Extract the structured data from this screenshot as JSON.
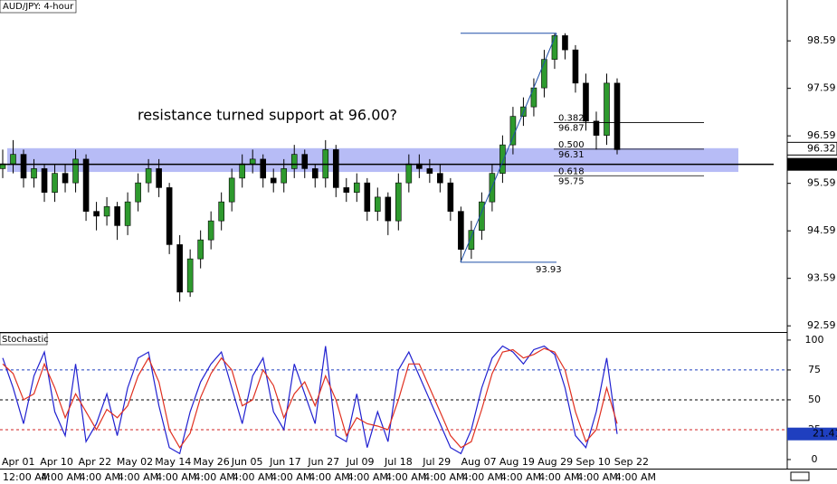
{
  "chart_data": [
    {
      "type": "candlestick",
      "title": "AUD/JPY: 4-hour",
      "annotation": "resistance turned support at 96.00?",
      "ylim": [
        92.46,
        99.45
      ],
      "yticks": [
        98.59,
        97.59,
        96.59,
        95.59,
        94.59,
        93.59,
        92.59
      ],
      "zone": [
        95.83,
        96.33
      ],
      "support_level": 95.99,
      "current_price": 96.32,
      "fib_low": 93.93,
      "fib_high": 98.75,
      "fib_levels": [
        {
          "ratio": "0.382",
          "price": 96.87
        },
        {
          "ratio": "0.500",
          "price": 96.31
        },
        {
          "ratio": "0.618",
          "price": 95.75
        }
      ],
      "up_color": "#2e9a2e",
      "down_color": "#000000",
      "zone_color": "#aab0f5",
      "fib_color": "#1f4fa8",
      "candles": [
        [
          95.9,
          96.3,
          95.7,
          96.0
        ],
        [
          96.0,
          96.5,
          95.8,
          96.2
        ],
        [
          96.2,
          96.3,
          95.5,
          95.7
        ],
        [
          95.7,
          96.1,
          95.5,
          95.9
        ],
        [
          95.9,
          96.0,
          95.2,
          95.4
        ],
        [
          95.4,
          96.0,
          95.2,
          95.8
        ],
        [
          95.8,
          96.0,
          95.4,
          95.6
        ],
        [
          95.6,
          96.3,
          95.4,
          96.1
        ],
        [
          96.1,
          96.2,
          94.8,
          95.0
        ],
        [
          95.0,
          95.2,
          94.6,
          94.9
        ],
        [
          94.9,
          95.3,
          94.7,
          95.1
        ],
        [
          95.1,
          95.2,
          94.4,
          94.7
        ],
        [
          94.7,
          95.4,
          94.5,
          95.2
        ],
        [
          95.2,
          95.8,
          95.0,
          95.6
        ],
        [
          95.6,
          96.1,
          95.4,
          95.9
        ],
        [
          95.9,
          96.1,
          95.3,
          95.5
        ],
        [
          95.5,
          95.6,
          94.1,
          94.3
        ],
        [
          94.3,
          94.5,
          93.1,
          93.3
        ],
        [
          93.3,
          94.2,
          93.2,
          94.0
        ],
        [
          94.0,
          94.6,
          93.8,
          94.4
        ],
        [
          94.4,
          95.0,
          94.2,
          94.8
        ],
        [
          94.8,
          95.4,
          94.6,
          95.2
        ],
        [
          95.2,
          95.9,
          95.0,
          95.7
        ],
        [
          95.7,
          96.2,
          95.5,
          96.0
        ],
        [
          96.0,
          96.3,
          95.8,
          96.1
        ],
        [
          96.1,
          96.2,
          95.5,
          95.7
        ],
        [
          95.7,
          95.9,
          95.4,
          95.6
        ],
        [
          95.6,
          96.1,
          95.4,
          95.9
        ],
        [
          95.9,
          96.4,
          95.7,
          96.2
        ],
        [
          96.2,
          96.3,
          95.7,
          95.9
        ],
        [
          95.9,
          96.0,
          95.5,
          95.7
        ],
        [
          95.7,
          96.5,
          95.5,
          96.3
        ],
        [
          96.3,
          96.4,
          95.3,
          95.5
        ],
        [
          95.5,
          95.7,
          95.2,
          95.4
        ],
        [
          95.4,
          95.8,
          95.2,
          95.6
        ],
        [
          95.6,
          95.7,
          94.8,
          95.0
        ],
        [
          95.0,
          95.5,
          94.8,
          95.3
        ],
        [
          95.3,
          95.4,
          94.5,
          94.8
        ],
        [
          94.8,
          95.8,
          94.6,
          95.6
        ],
        [
          95.6,
          96.2,
          95.4,
          96.0
        ],
        [
          96.0,
          96.2,
          95.7,
          95.9
        ],
        [
          95.9,
          96.1,
          95.6,
          95.8
        ],
        [
          95.8,
          96.0,
          95.4,
          95.6
        ],
        [
          95.6,
          95.7,
          94.8,
          95.0
        ],
        [
          95.0,
          95.1,
          93.93,
          94.2
        ],
        [
          94.2,
          94.8,
          94.0,
          94.6
        ],
        [
          94.6,
          95.4,
          94.4,
          95.2
        ],
        [
          95.2,
          96.0,
          95.0,
          95.8
        ],
        [
          95.8,
          96.6,
          95.6,
          96.4
        ],
        [
          96.4,
          97.2,
          96.2,
          97.0
        ],
        [
          97.0,
          97.4,
          96.8,
          97.2
        ],
        [
          97.2,
          97.8,
          97.0,
          97.6
        ],
        [
          97.6,
          98.4,
          97.4,
          98.2
        ],
        [
          98.2,
          98.75,
          98.0,
          98.7
        ],
        [
          98.7,
          98.75,
          98.2,
          98.4
        ],
        [
          98.4,
          98.5,
          97.5,
          97.7
        ],
        [
          97.7,
          97.9,
          96.7,
          96.9
        ],
        [
          96.9,
          97.1,
          96.3,
          96.6
        ],
        [
          96.6,
          97.9,
          96.4,
          97.7
        ],
        [
          97.7,
          97.8,
          96.2,
          96.3
        ]
      ],
      "x_labels": [
        "Apr 01",
        "Apr 10",
        "Apr 22",
        "May 02",
        "May 14",
        "May 26",
        "Jun 05",
        "Jun 17",
        "Jun 27",
        "Jul 09",
        "Jul 18",
        "Jul 29",
        "Aug 07",
        "Aug 19",
        "Aug 29",
        "Sep 10",
        "Sep 22"
      ],
      "x_time_labels": [
        "12:00 AM",
        "4:00 AM",
        "4:00 AM",
        "4:00 AM",
        "4:00 AM",
        "4:00 AM",
        "4:00 AM",
        "4:00 AM",
        "4:00 AM",
        "4:00 AM",
        "4:00 AM",
        "4:00 AM",
        "4:00 AM",
        "4:00 AM",
        "4:00 AM",
        "4:00 AM",
        "4:00 AM"
      ]
    },
    {
      "type": "line",
      "title": "Stochastic",
      "ylim": [
        -7.6,
        106
      ],
      "yticks": [
        100,
        75,
        50,
        25,
        0
      ],
      "levels": [
        {
          "value": 75,
          "color": "#1f3fbf"
        },
        {
          "value": 50,
          "color": "#000000"
        },
        {
          "value": 25,
          "color": "#d02020"
        }
      ],
      "last_value": 21.41,
      "series": [
        {
          "color": "#2020d0",
          "values": [
            85,
            60,
            30,
            70,
            90,
            40,
            20,
            80,
            15,
            30,
            55,
            20,
            60,
            85,
            90,
            45,
            10,
            5,
            40,
            65,
            80,
            90,
            60,
            30,
            70,
            85,
            40,
            25,
            80,
            55,
            30,
            95,
            20,
            15,
            55,
            10,
            40,
            15,
            75,
            90,
            70,
            50,
            30,
            10,
            5,
            25,
            60,
            85,
            95,
            90,
            80,
            92,
            95,
            88,
            60,
            20,
            10,
            40,
            85,
            21.41
          ]
        },
        {
          "color": "#e03020",
          "values": [
            80,
            72,
            50,
            55,
            80,
            60,
            35,
            55,
            40,
            25,
            42,
            35,
            45,
            70,
            85,
            65,
            25,
            10,
            22,
            52,
            72,
            85,
            75,
            45,
            50,
            75,
            62,
            35,
            55,
            65,
            45,
            70,
            50,
            20,
            35,
            30,
            28,
            25,
            50,
            80,
            80,
            60,
            40,
            20,
            10,
            15,
            42,
            72,
            90,
            92,
            85,
            88,
            93,
            90,
            75,
            40,
            15,
            25,
            60,
            30
          ]
        }
      ]
    }
  ]
}
